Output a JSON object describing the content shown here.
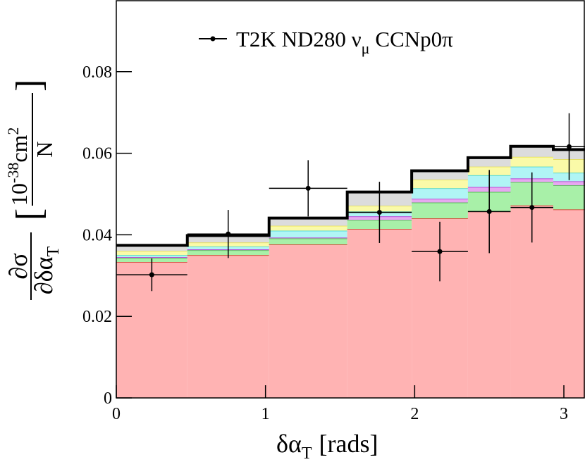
{
  "chart_data": {
    "type": "histogram",
    "bins": [
      0,
      0.476,
      1.024,
      1.548,
      1.98,
      2.357,
      2.643,
      2.929,
      3.1416
    ],
    "series": [
      {
        "color": "#ffb3b3",
        "edge": "#e02020",
        "values": [
          0.0333,
          0.035,
          0.0376,
          0.0414,
          0.044,
          0.0457,
          0.0472,
          0.0462
        ]
      },
      {
        "color": "#a8f0a8",
        "edge": "#30c030",
        "values": [
          0.001,
          0.0012,
          0.0015,
          0.0022,
          0.0039,
          0.0048,
          0.0057,
          0.0059
        ]
      },
      {
        "color": "#e6a8f0",
        "edge": "#c020d0",
        "values": [
          0.0002,
          0.0002,
          0.0002,
          0.0009,
          0.0009,
          0.0012,
          0.0009,
          0.001
        ]
      },
      {
        "color": "#b0f5f5",
        "edge": "#30d0d0",
        "values": [
          0.0005,
          0.0007,
          0.0017,
          0.0012,
          0.0026,
          0.0029,
          0.0029,
          0.0021
        ]
      },
      {
        "color": "#fafaa8",
        "edge": "#e8e040",
        "values": [
          0.001,
          0.001,
          0.0012,
          0.0014,
          0.0021,
          0.0021,
          0.0024,
          0.0033
        ]
      },
      {
        "color": "#dcdcdc",
        "edge": "#a0a0a0",
        "values": [
          0.0014,
          0.0017,
          0.0019,
          0.0034,
          0.0022,
          0.0022,
          0.0026,
          0.0024
        ]
      }
    ],
    "data": {
      "color": "#000000",
      "values": [
        0.0302,
        0.0402,
        0.0514,
        0.0455,
        0.0359,
        0.0457,
        0.0467,
        0.0616
      ],
      "errors": [
        0.004,
        0.0059,
        0.0069,
        0.0075,
        0.0073,
        0.0102,
        0.0086,
        0.0082
      ]
    },
    "legend": {
      "text": "T2K ND280 ν",
      "subscript": "μ",
      "rest": "CCNp0π"
    },
    "x_label": {
      "text": "δα",
      "subscript": "T",
      "unit": "[rads]"
    },
    "y_label": {
      "numerator": "∂σ",
      "denominator": "∂δα",
      "subscript": "T",
      "unit_base": "10",
      "unit_exponent": "-38",
      "unit_rest": "cm",
      "unit_rest_exponent": "2",
      "unit_denominator": "N"
    },
    "xlim": [
      0,
      3.1416
    ],
    "ylim": [
      0,
      0.0974
    ],
    "xticks": [
      0,
      1,
      2,
      3
    ],
    "yticks": [
      0,
      0.02,
      0.04,
      0.06,
      0.08
    ]
  }
}
